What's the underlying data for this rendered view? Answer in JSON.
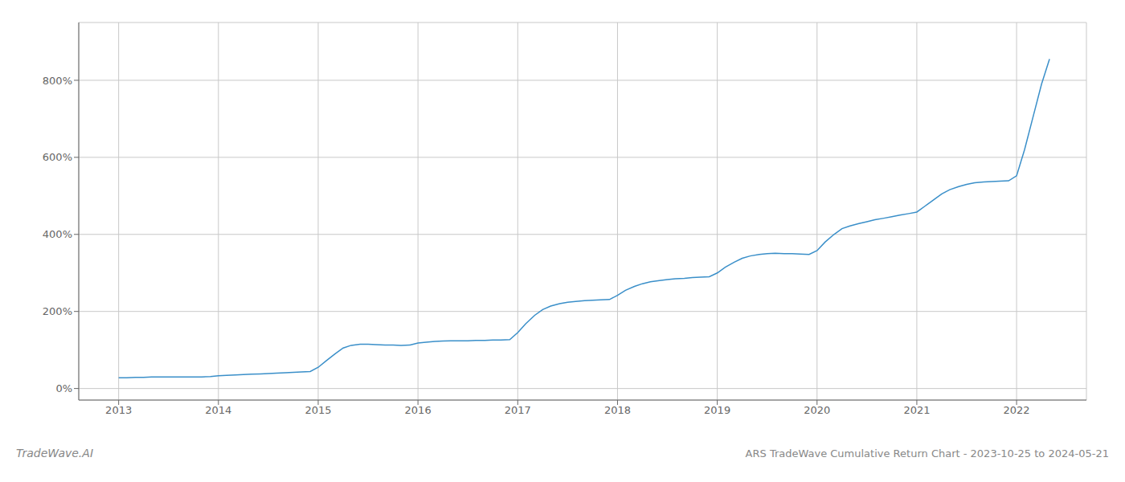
{
  "chart_data": {
    "type": "line",
    "title": "ARS TradeWave Cumulative Return Chart - 2023-10-25 to 2024-05-21",
    "annotations": [
      "TradeWave.AI"
    ],
    "color": "#3a8fc9",
    "grid": true,
    "xlim": [
      2012.6,
      2022.7
    ],
    "xticks": [
      2013,
      2014,
      2015,
      2016,
      2017,
      2018,
      2019,
      2020,
      2021,
      2022
    ],
    "ylim": [
      -30,
      950
    ],
    "yticks": [
      {
        "value": 0,
        "label": "0%"
      },
      {
        "value": 200,
        "label": "200%"
      },
      {
        "value": 400,
        "label": "400%"
      },
      {
        "value": 600,
        "label": "600%"
      },
      {
        "value": 800,
        "label": "800%"
      }
    ],
    "x": [
      2013.0,
      2013.08,
      2013.17,
      2013.25,
      2013.33,
      2013.42,
      2013.5,
      2013.58,
      2013.67,
      2013.75,
      2013.83,
      2013.92,
      2014.0,
      2014.08,
      2014.17,
      2014.25,
      2014.33,
      2014.42,
      2014.5,
      2014.58,
      2014.67,
      2014.75,
      2014.83,
      2014.92,
      2015.0,
      2015.08,
      2015.17,
      2015.25,
      2015.33,
      2015.42,
      2015.5,
      2015.58,
      2015.67,
      2015.75,
      2015.83,
      2015.92,
      2016.0,
      2016.08,
      2016.17,
      2016.25,
      2016.33,
      2016.42,
      2016.5,
      2016.58,
      2016.67,
      2016.75,
      2016.83,
      2016.92,
      2017.0,
      2017.08,
      2017.17,
      2017.25,
      2017.33,
      2017.42,
      2017.5,
      2017.58,
      2017.67,
      2017.75,
      2017.83,
      2017.92,
      2018.0,
      2018.08,
      2018.17,
      2018.25,
      2018.33,
      2018.42,
      2018.5,
      2018.58,
      2018.67,
      2018.75,
      2018.83,
      2018.92,
      2019.0,
      2019.08,
      2019.17,
      2019.25,
      2019.33,
      2019.42,
      2019.5,
      2019.58,
      2019.67,
      2019.75,
      2019.83,
      2019.92,
      2020.0,
      2020.08,
      2020.17,
      2020.25,
      2020.33,
      2020.42,
      2020.5,
      2020.58,
      2020.67,
      2020.75,
      2020.83,
      2020.92,
      2021.0,
      2021.08,
      2021.17,
      2021.25,
      2021.33,
      2021.42,
      2021.5,
      2021.58,
      2021.67,
      2021.75,
      2021.83,
      2021.92,
      2022.0,
      2022.08,
      2022.17,
      2022.25,
      2022.33
    ],
    "values": [
      28,
      28,
      29,
      29,
      30,
      30,
      30,
      30,
      30,
      30,
      30,
      31,
      33,
      34,
      35,
      36,
      37,
      38,
      39,
      40,
      41,
      42,
      43,
      44,
      55,
      72,
      90,
      105,
      112,
      115,
      115,
      114,
      113,
      113,
      112,
      113,
      118,
      120,
      122,
      123,
      124,
      124,
      124,
      125,
      125,
      126,
      126,
      127,
      145,
      168,
      190,
      205,
      214,
      220,
      224,
      226,
      228,
      229,
      230,
      231,
      242,
      255,
      265,
      272,
      277,
      280,
      283,
      285,
      286,
      288,
      289,
      290,
      300,
      315,
      328,
      338,
      344,
      348,
      350,
      351,
      350,
      350,
      349,
      348,
      358,
      380,
      400,
      415,
      422,
      428,
      433,
      438,
      442,
      446,
      450,
      454,
      458,
      473,
      490,
      505,
      516,
      524,
      530,
      534,
      536,
      537,
      538,
      539,
      552,
      620,
      710,
      790,
      855
    ]
  }
}
